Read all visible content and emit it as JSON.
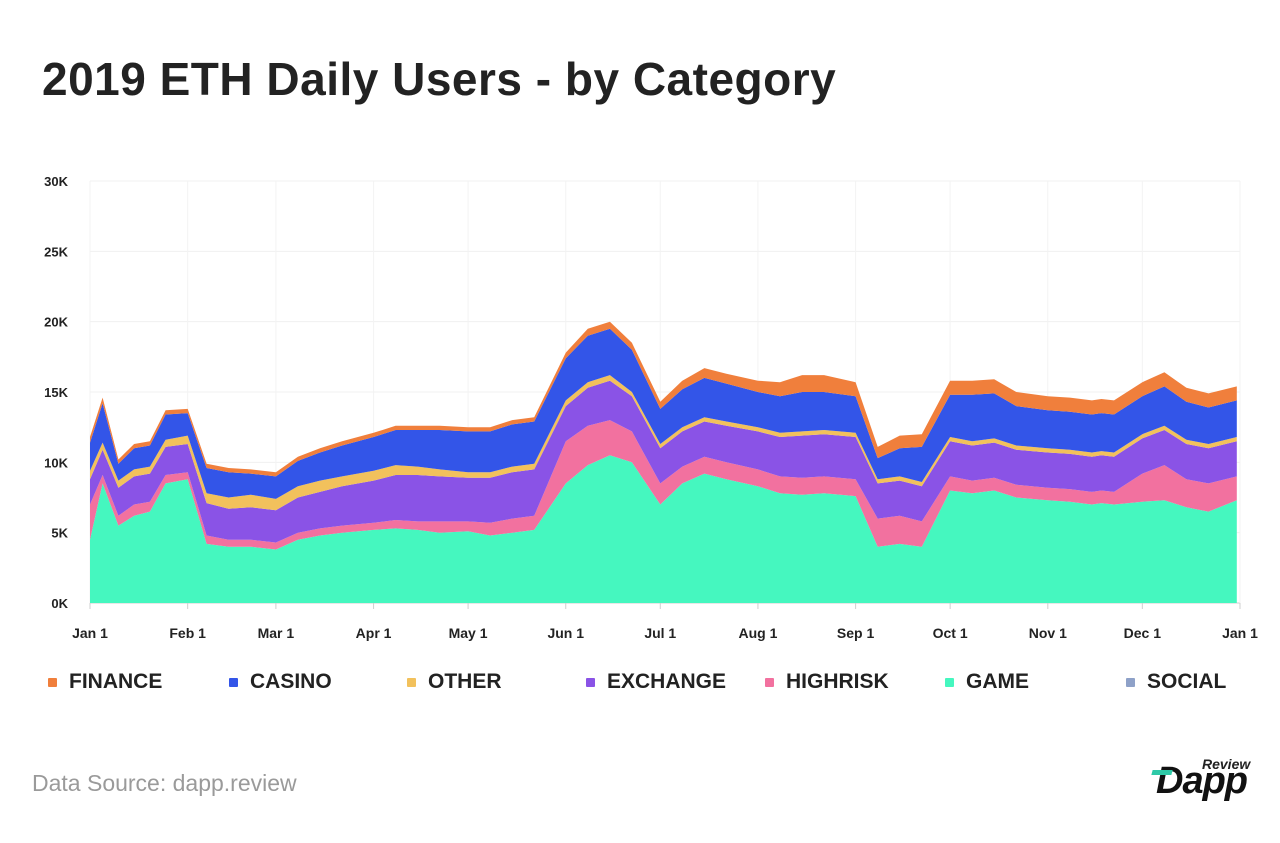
{
  "title": "2019 ETH Daily Users - by Category",
  "source": "Data Source: dapp.review",
  "logo": {
    "review": "Review",
    "word": "Dapp",
    "bar_color": "#2ec9a7"
  },
  "legend": [
    {
      "name": "FINANCE",
      "color": "#f07f3c"
    },
    {
      "name": "CASINO",
      "color": "#3355e8"
    },
    {
      "name": "OTHER",
      "color": "#f2c15c"
    },
    {
      "name": "EXCHANGE",
      "color": "#8a53e6"
    },
    {
      "name": "HIGHRISK",
      "color": "#f2719f"
    },
    {
      "name": "GAME",
      "color": "#45f7bf"
    },
    {
      "name": "SOCIAL",
      "color": "#8ea1c8"
    }
  ],
  "chart_data": {
    "type": "area",
    "stacked": true,
    "title": "2019 ETH Daily Users - by Category",
    "xlabel": "",
    "ylabel": "",
    "x_ticks": [
      "Jan 1",
      "Feb 1",
      "Mar 1",
      "Apr 1",
      "May 1",
      "Jun 1",
      "Jul 1",
      "Aug 1",
      "Sep 1",
      "Oct 1",
      "Nov 1",
      "Dec 1",
      "Jan 1"
    ],
    "y_ticks": [
      "0K",
      "5K",
      "10K",
      "15K",
      "20K",
      "25K",
      "30K"
    ],
    "ylim": [
      0,
      30000
    ],
    "grid": true,
    "legend_position": "bottom",
    "x": [
      "2019-01-01",
      "2019-01-05",
      "2019-01-10",
      "2019-01-15",
      "2019-01-20",
      "2019-01-25",
      "2019-02-01",
      "2019-02-07",
      "2019-02-14",
      "2019-02-21",
      "2019-03-01",
      "2019-03-08",
      "2019-03-15",
      "2019-03-22",
      "2019-04-01",
      "2019-04-08",
      "2019-04-15",
      "2019-04-22",
      "2019-05-01",
      "2019-05-08",
      "2019-05-15",
      "2019-05-22",
      "2019-06-01",
      "2019-06-08",
      "2019-06-15",
      "2019-06-22",
      "2019-07-01",
      "2019-07-08",
      "2019-07-15",
      "2019-07-22",
      "2019-08-01",
      "2019-08-08",
      "2019-08-15",
      "2019-08-22",
      "2019-09-01",
      "2019-09-08",
      "2019-09-15",
      "2019-09-22",
      "2019-10-01",
      "2019-10-08",
      "2019-10-15",
      "2019-10-22",
      "2019-11-01",
      "2019-11-08",
      "2019-11-15",
      "2019-11-18",
      "2019-11-22",
      "2019-12-01",
      "2019-12-08",
      "2019-12-15",
      "2019-12-22",
      "2019-12-31"
    ],
    "series": [
      {
        "name": "SOCIAL",
        "color": "#8ea1c8",
        "values": [
          0,
          0,
          0,
          0,
          0,
          0,
          0,
          0,
          0,
          0,
          0,
          0,
          0,
          0,
          0,
          0,
          0,
          0,
          0,
          0,
          0,
          0,
          0,
          0,
          0,
          0,
          0,
          0,
          0,
          0,
          0,
          0,
          0,
          0,
          0,
          0,
          0,
          0,
          0,
          0,
          0,
          0,
          0,
          0,
          0,
          0,
          0,
          0,
          0,
          0,
          0,
          0
        ]
      },
      {
        "name": "GAME",
        "color": "#45f7bf",
        "values": [
          4500,
          8500,
          5500,
          6200,
          6500,
          8500,
          8800,
          4200,
          4000,
          4000,
          3800,
          4500,
          4800,
          5000,
          5200,
          5300,
          5200,
          5000,
          5100,
          4800,
          5000,
          5200,
          8500,
          9800,
          10500,
          10000,
          7000,
          8500,
          9200,
          8800,
          8300,
          7800,
          7700,
          7800,
          7600,
          4000,
          4200,
          4000,
          8000,
          7800,
          8000,
          7500,
          7300,
          7200,
          7000,
          7100,
          7000,
          7200,
          7300,
          6800,
          6500,
          7300
        ]
      },
      {
        "name": "HIGHRISK",
        "color": "#f2719f",
        "values": [
          2500,
          600,
          700,
          800,
          700,
          600,
          500,
          600,
          500,
          500,
          500,
          500,
          500,
          500,
          500,
          600,
          600,
          800,
          700,
          900,
          1000,
          1000,
          3000,
          2800,
          2500,
          2200,
          1500,
          1200,
          1200,
          1200,
          1200,
          1200,
          1200,
          1200,
          1200,
          2000,
          2000,
          1800,
          1000,
          900,
          900,
          900,
          900,
          900,
          900,
          900,
          900,
          2000,
          2500,
          2000,
          2000,
          1700
        ]
      },
      {
        "name": "EXCHANGE",
        "color": "#8a53e6",
        "values": [
          1800,
          1800,
          2000,
          2000,
          2000,
          2000,
          2000,
          2300,
          2200,
          2300,
          2300,
          2500,
          2600,
          2800,
          3000,
          3200,
          3300,
          3200,
          3100,
          3200,
          3300,
          3300,
          2500,
          2700,
          2800,
          2500,
          2500,
          2500,
          2500,
          2600,
          2700,
          2800,
          3000,
          3000,
          3000,
          2500,
          2500,
          2500,
          2500,
          2500,
          2500,
          2500,
          2500,
          2500,
          2500,
          2500,
          2500,
          2500,
          2500,
          2500,
          2500,
          2500
        ]
      },
      {
        "name": "OTHER",
        "color": "#f2c15c",
        "values": [
          600,
          500,
          500,
          500,
          500,
          500,
          600,
          700,
          800,
          900,
          800,
          800,
          800,
          700,
          700,
          700,
          600,
          500,
          400,
          400,
          400,
          400,
          400,
          400,
          400,
          300,
          300,
          300,
          300,
          300,
          300,
          300,
          300,
          300,
          300,
          300,
          300,
          300,
          300,
          300,
          300,
          300,
          300,
          300,
          300,
          300,
          300,
          300,
          300,
          300,
          300,
          300
        ]
      },
      {
        "name": "CASINO",
        "color": "#3355e8",
        "values": [
          2000,
          2800,
          1200,
          1500,
          1500,
          1800,
          1600,
          1800,
          1800,
          1500,
          1600,
          1800,
          2000,
          2200,
          2400,
          2500,
          2600,
          2800,
          2900,
          2900,
          3000,
          3000,
          3000,
          3300,
          3300,
          3000,
          2500,
          2700,
          2800,
          2700,
          2500,
          2600,
          2800,
          2700,
          2600,
          1500,
          2000,
          2500,
          3000,
          3300,
          3200,
          2800,
          2700,
          2700,
          2700,
          2700,
          2700,
          2700,
          2800,
          2700,
          2600,
          2600
        ]
      },
      {
        "name": "FINANCE",
        "color": "#f07f3c",
        "values": [
          400,
          400,
          300,
          300,
          300,
          300,
          300,
          300,
          300,
          300,
          300,
          300,
          300,
          300,
          300,
          300,
          300,
          300,
          300,
          300,
          300,
          300,
          400,
          500,
          500,
          500,
          500,
          600,
          700,
          700,
          800,
          1000,
          1200,
          1200,
          1000,
          800,
          900,
          900,
          1000,
          1000,
          1000,
          1000,
          1000,
          1000,
          1000,
          1000,
          1000,
          1000,
          1000,
          1000,
          1000,
          1000
        ]
      }
    ]
  }
}
